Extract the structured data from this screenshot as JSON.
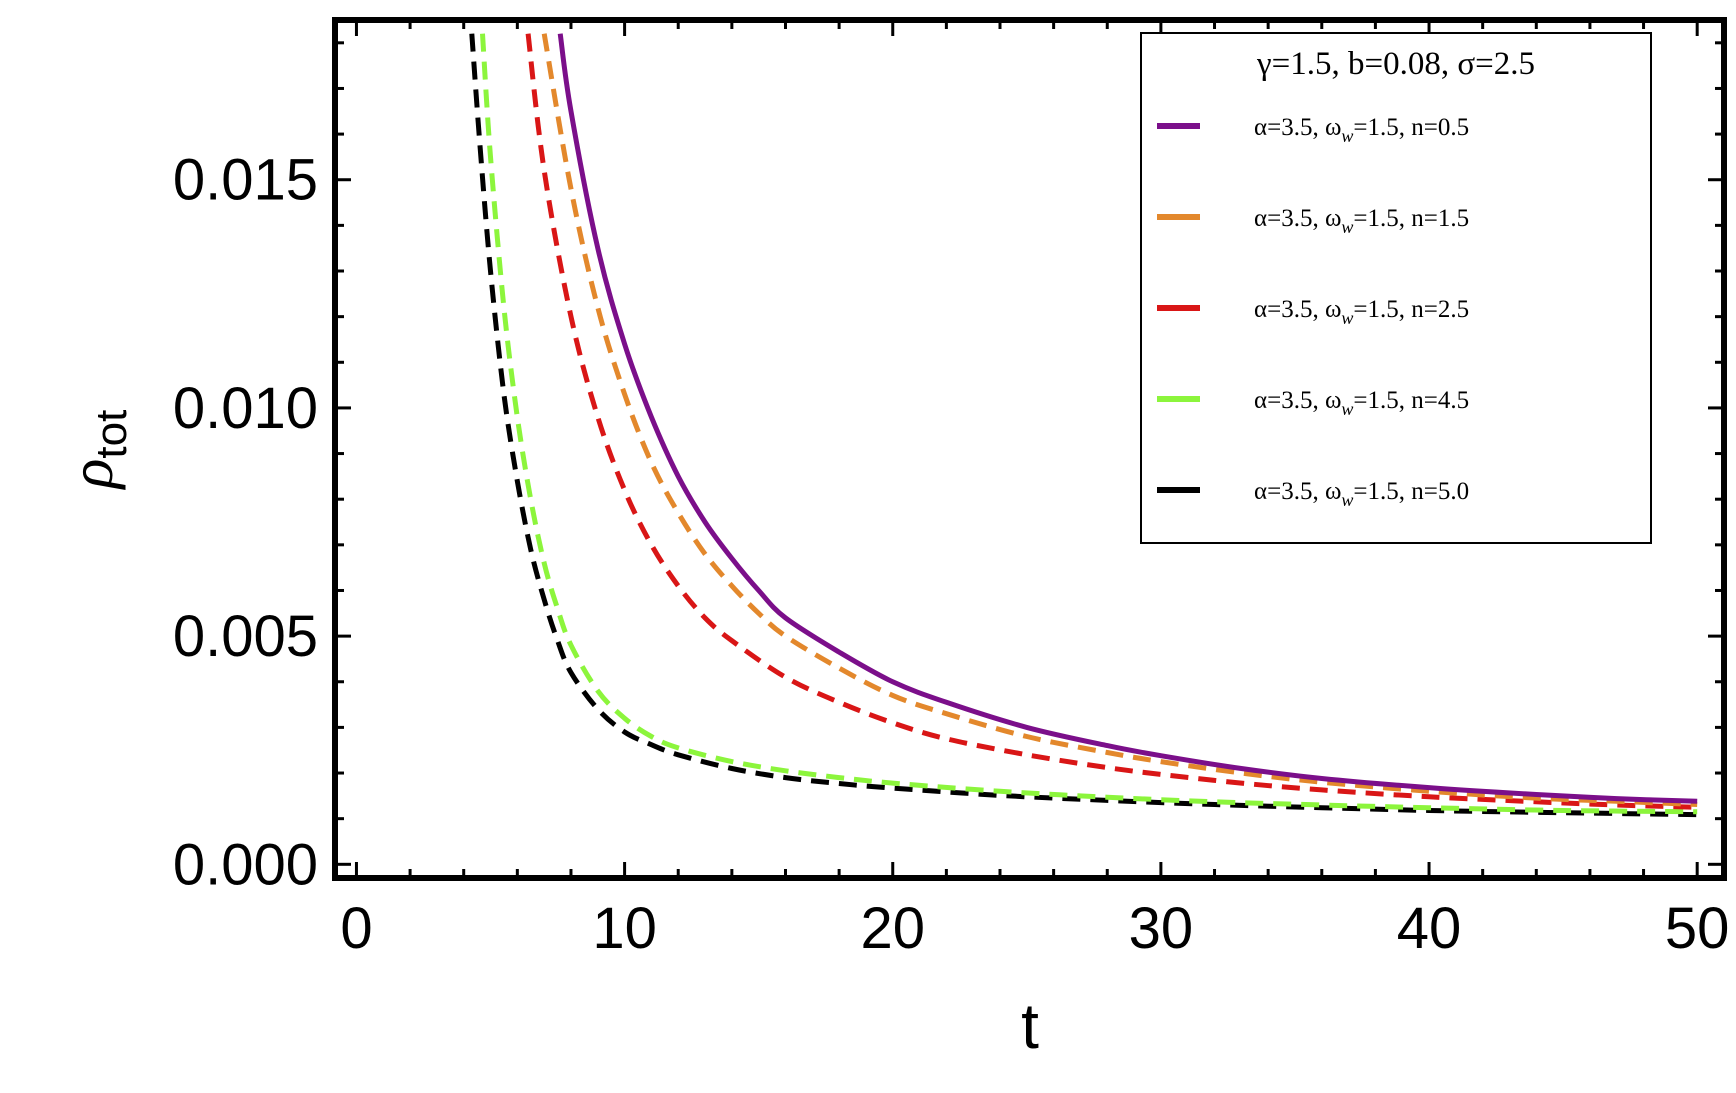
{
  "chart_data": {
    "type": "line",
    "xlabel": "t",
    "ylabel": "ρ",
    "ylabel_sub": "tot",
    "xlim": [
      -0.8,
      51
    ],
    "ylim": [
      -0.0003,
      0.0185
    ],
    "x_ticks": [
      0,
      10,
      20,
      30,
      40,
      50
    ],
    "x_tick_labels": [
      "0",
      "10",
      "20",
      "30",
      "40",
      "50"
    ],
    "y_ticks": [
      0.0,
      0.005,
      0.01,
      0.015
    ],
    "y_tick_labels": [
      "0.000",
      "0.005",
      "0.010",
      "0.015"
    ],
    "grid": false,
    "legend_placement": "top-right",
    "legend_title": "γ=1.5, b=0.08, σ=2.5",
    "series": [
      {
        "name": "α=3.5, ωw=1.5, n=0.5",
        "label_parts": [
          "α=3.5, ω",
          "w",
          "=1.5, n=0.5"
        ],
        "color": "#7b0f8a",
        "style": "solid",
        "x": [
          7.6,
          8,
          9,
          10,
          11,
          12,
          13,
          14,
          15,
          16,
          18,
          20,
          22,
          25,
          28,
          30,
          33,
          36,
          40,
          44,
          47,
          50
        ],
        "y": [
          0.0182,
          0.0165,
          0.0135,
          0.0114,
          0.0098,
          0.0085,
          0.0075,
          0.0067,
          0.006,
          0.0054,
          0.00465,
          0.004,
          0.00355,
          0.003,
          0.0026,
          0.00238,
          0.0021,
          0.00188,
          0.00168,
          0.00153,
          0.00144,
          0.00138
        ]
      },
      {
        "name": "α=3.5, ωw=1.5, n=1.5",
        "label_parts": [
          "α=3.5, ω",
          "w",
          "=1.5, n=1.5"
        ],
        "color": "#e3882c",
        "style": "dashed",
        "x": [
          7.0,
          8,
          9,
          10,
          11,
          12,
          13,
          14,
          15,
          16,
          18,
          20,
          22,
          25,
          28,
          30,
          33,
          36,
          40,
          44,
          47,
          50
        ],
        "y": [
          0.0182,
          0.0148,
          0.0122,
          0.0103,
          0.0088,
          0.0077,
          0.0068,
          0.0061,
          0.0055,
          0.005,
          0.0043,
          0.0037,
          0.0033,
          0.0028,
          0.00245,
          0.00225,
          0.002,
          0.0018,
          0.0016,
          0.00145,
          0.00138,
          0.00131
        ]
      },
      {
        "name": "α=3.5, ωw=1.5, n=2.5",
        "label_parts": [
          "α=3.5, ω",
          "w",
          "=1.5, n=2.5"
        ],
        "color": "#d91616",
        "style": "dashed",
        "x": [
          6.4,
          7,
          8,
          9,
          10,
          11,
          12,
          13,
          14,
          16,
          18,
          20,
          22,
          25,
          28,
          30,
          33,
          36,
          40,
          44,
          47,
          50
        ],
        "y": [
          0.0182,
          0.0152,
          0.012,
          0.0098,
          0.0082,
          0.007,
          0.0061,
          0.0054,
          0.0049,
          0.0041,
          0.00355,
          0.0031,
          0.00275,
          0.0024,
          0.00212,
          0.00197,
          0.00178,
          0.00163,
          0.00148,
          0.00137,
          0.0013,
          0.00125
        ]
      },
      {
        "name": "α=3.5, ωw=1.5, n=4.5",
        "label_parts": [
          "α=3.5, ω",
          "w",
          "=1.5, n=4.5"
        ],
        "color": "#8cf53c",
        "style": "dashed",
        "x": [
          4.7,
          5,
          5.5,
          6,
          6.5,
          7,
          7.5,
          8,
          9,
          10,
          11,
          12,
          14,
          16,
          18,
          20,
          24,
          28,
          32,
          36,
          40,
          45,
          50
        ],
        "y": [
          0.0182,
          0.0155,
          0.0122,
          0.0098,
          0.008,
          0.0066,
          0.0056,
          0.0048,
          0.0038,
          0.0032,
          0.0028,
          0.00255,
          0.00225,
          0.00205,
          0.0019,
          0.00178,
          0.0016,
          0.00147,
          0.00137,
          0.0013,
          0.00124,
          0.00118,
          0.00115
        ]
      },
      {
        "name": "α=3.5, ωw=1.5, n=5.0",
        "label_parts": [
          "α=3.5, ω",
          "w",
          "=1.5, n=5.0"
        ],
        "color": "#000000",
        "style": "dashed",
        "x": [
          4.3,
          4.6,
          5,
          5.5,
          6,
          6.5,
          7,
          7.5,
          8,
          9,
          10,
          11,
          12,
          14,
          16,
          18,
          20,
          24,
          28,
          32,
          36,
          40,
          45,
          50
        ],
        "y": [
          0.0182,
          0.0158,
          0.013,
          0.0103,
          0.0084,
          0.0069,
          0.0058,
          0.0049,
          0.0042,
          0.0034,
          0.0029,
          0.00262,
          0.0024,
          0.0021,
          0.0019,
          0.00177,
          0.00167,
          0.00151,
          0.0014,
          0.00131,
          0.00124,
          0.00118,
          0.00113,
          0.00109
        ]
      }
    ]
  }
}
